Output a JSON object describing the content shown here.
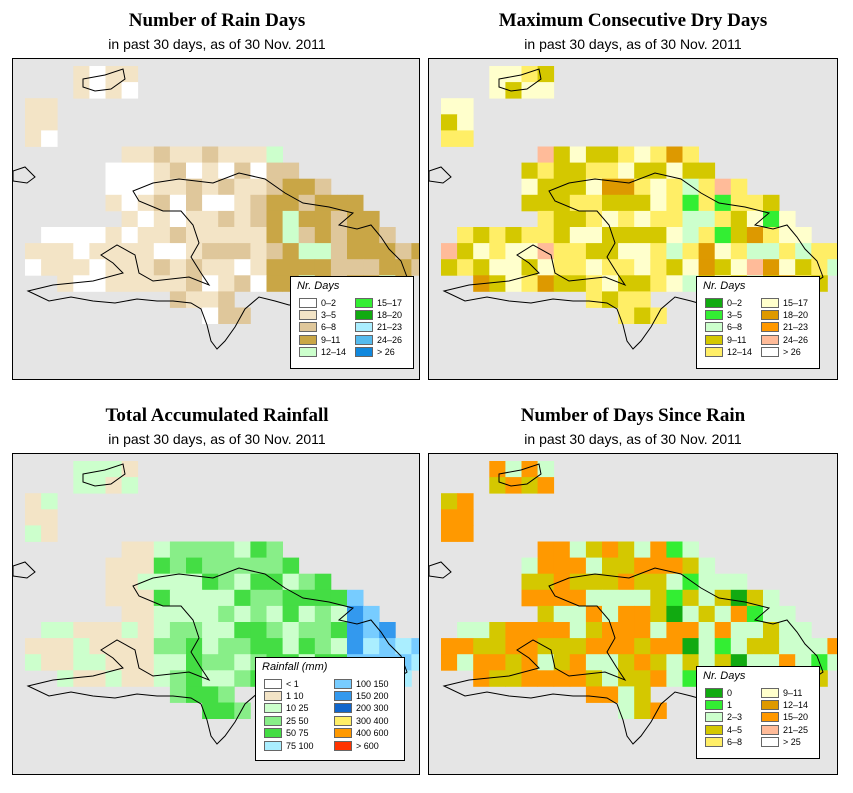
{
  "panels": [
    {
      "key": "rain_days",
      "title": "Number of Rain Days",
      "subtitle": "in past 30 days, as of  30 Nov. 2011",
      "legend_title": "Nr. Days",
      "legend": [
        {
          "label": "0–2",
          "color": "#ffffff"
        },
        {
          "label": "3–5",
          "color": "#f3e4c6"
        },
        {
          "label": "6–8",
          "color": "#dfc79b"
        },
        {
          "label": "9–11",
          "color": "#c9a646"
        },
        {
          "label": "12–14",
          "color": "#ccffcc"
        },
        {
          "label": "15–17",
          "color": "#33ee33"
        },
        {
          "label": "18–20",
          "color": "#11aa11"
        },
        {
          "label": "21–23",
          "color": "#aaeeff"
        },
        {
          "label": "24–26",
          "color": "#55bbee"
        },
        {
          "label": "> 26",
          "color": "#1188dd"
        }
      ]
    },
    {
      "key": "dry_days",
      "title": "Maximum Consecutive Dry Days",
      "subtitle": "in past 30 days, as of  30 Nov. 2011",
      "legend_title": "Nr. Days",
      "legend": [
        {
          "label": "0–2",
          "color": "#11aa11"
        },
        {
          "label": "3–5",
          "color": "#33ee33"
        },
        {
          "label": "6–8",
          "color": "#ccffcc"
        },
        {
          "label": "9–11",
          "color": "#d4c800"
        },
        {
          "label": "12–14",
          "color": "#ffee66"
        },
        {
          "label": "15–17",
          "color": "#ffffcc"
        },
        {
          "label": "18–20",
          "color": "#dd9900"
        },
        {
          "label": "21–23",
          "color": "#ff9900"
        },
        {
          "label": "24–26",
          "color": "#ffbb99"
        },
        {
          "label": "> 26",
          "color": "#ffffff"
        }
      ]
    },
    {
      "key": "rainfall",
      "title": "Total Accumulated Rainfall",
      "subtitle": "in past 30 days, as of  30 Nov. 2011",
      "legend_title": "Rainfall (mm)",
      "legend": [
        {
          "label": "< 1",
          "color": "#ffffff"
        },
        {
          "label": "1   10",
          "color": "#f3e4c6"
        },
        {
          "label": "10   25",
          "color": "#ccffcc"
        },
        {
          "label": "25   50",
          "color": "#88ee88"
        },
        {
          "label": "50   75",
          "color": "#44dd44"
        },
        {
          "label": "75  100",
          "color": "#aaeeff"
        },
        {
          "label": "100  150",
          "color": "#77ccff"
        },
        {
          "label": "150  200",
          "color": "#3399ee"
        },
        {
          "label": "200  300",
          "color": "#1166cc"
        },
        {
          "label": "300  400",
          "color": "#ffee66"
        },
        {
          "label": "400  600",
          "color": "#ff9900"
        },
        {
          "label": "> 600",
          "color": "#ff3300"
        }
      ]
    },
    {
      "key": "since_rain",
      "title": "Number of Days Since Rain",
      "subtitle": "in past 30 days, as of  30 Nov. 2011",
      "legend_title": "Nr. Days",
      "legend": [
        {
          "label": "0",
          "color": "#11aa11"
        },
        {
          "label": "1",
          "color": "#33ee33"
        },
        {
          "label": "2–3",
          "color": "#ccffcc"
        },
        {
          "label": "4–5",
          "color": "#d4c800"
        },
        {
          "label": "6–8",
          "color": "#ffee66"
        },
        {
          "label": "9–11",
          "color": "#ffffcc"
        },
        {
          "label": "12–14",
          "color": "#dd9900"
        },
        {
          "label": "15–20",
          "color": "#ff9900"
        },
        {
          "label": "21–25",
          "color": "#ffbb99"
        },
        {
          "label": "> 25",
          "color": "#ffffff"
        }
      ]
    }
  ]
}
